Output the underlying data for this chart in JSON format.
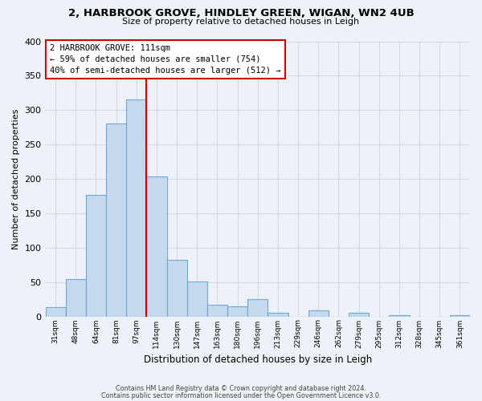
{
  "title": "2, HARBROOK GROVE, HINDLEY GREEN, WIGAN, WN2 4UB",
  "subtitle": "Size of property relative to detached houses in Leigh",
  "xlabel": "Distribution of detached houses by size in Leigh",
  "ylabel": "Number of detached properties",
  "bar_labels": [
    "31sqm",
    "48sqm",
    "64sqm",
    "81sqm",
    "97sqm",
    "114sqm",
    "130sqm",
    "147sqm",
    "163sqm",
    "180sqm",
    "196sqm",
    "213sqm",
    "229sqm",
    "246sqm",
    "262sqm",
    "279sqm",
    "295sqm",
    "312sqm",
    "328sqm",
    "345sqm",
    "361sqm"
  ],
  "bar_values": [
    14,
    54,
    177,
    281,
    315,
    203,
    82,
    51,
    17,
    15,
    25,
    5,
    0,
    9,
    0,
    5,
    0,
    2,
    0,
    0,
    2
  ],
  "bar_color": "#c5d8ee",
  "bar_edge_color": "#6aaad4",
  "vline_x_index": 5,
  "vline_color": "#cc0000",
  "annotation_title": "2 HARBROOK GROVE: 111sqm",
  "annotation_line1": "← 59% of detached houses are smaller (754)",
  "annotation_line2": "40% of semi-detached houses are larger (512) →",
  "annotation_box_color": "#ffffff",
  "annotation_box_edge": "#cc0000",
  "ylim": [
    0,
    400
  ],
  "yticks": [
    0,
    50,
    100,
    150,
    200,
    250,
    300,
    350,
    400
  ],
  "footer1": "Contains HM Land Registry data © Crown copyright and database right 2024.",
  "footer2": "Contains public sector information licensed under the Open Government Licence v3.0.",
  "bg_color": "#edf2f9",
  "grid_color": "#d0d8e8"
}
